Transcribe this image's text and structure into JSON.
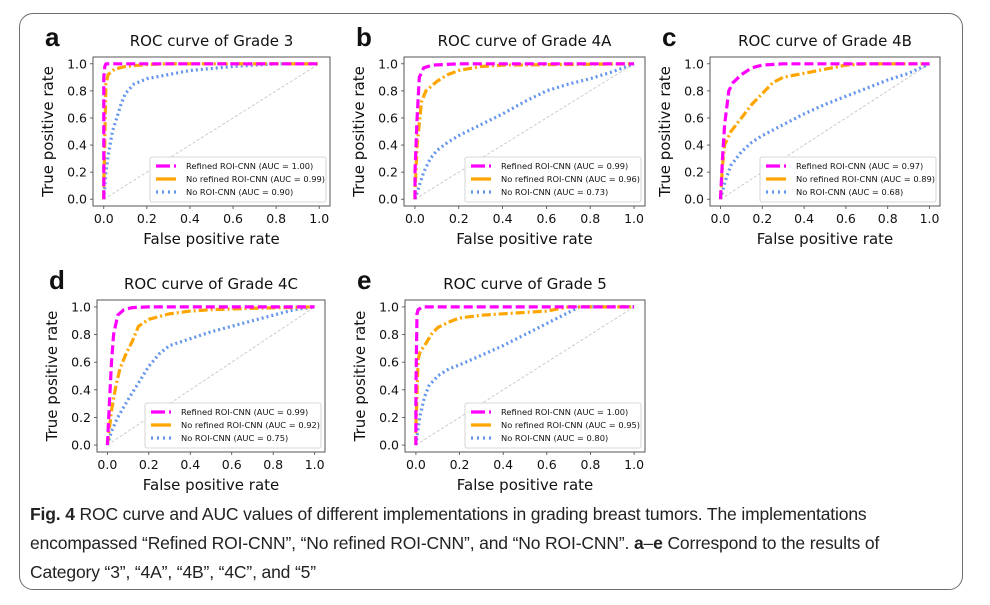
{
  "figure": {
    "caption_label": "Fig. 4",
    "caption_text_1": " ROC curve and AUC values of different implementations in grading breast tumors. The implementations encompassed “Refined ROI-CNN”, “No refined ROI-CNN”, and “No ROI-CNN”. ",
    "caption_bold_2": "a",
    "caption_dash": "–",
    "caption_bold_3": "e",
    "caption_text_2": " Correspond to the results of Category “3”, “4A”, “4B”, “4C”, and “5”"
  },
  "series_styles": {
    "Refined ROI-CNN": {
      "color": "#ff00ff",
      "dash": "dashed"
    },
    "No refined ROI-CNN": {
      "color": "#ffa500",
      "dash": "dashdot"
    },
    "No ROI-CNN": {
      "color": "#6495ed",
      "dash": "dotted"
    },
    "chance": {
      "color": "#c0c0c0",
      "dash": "dashed"
    }
  },
  "chart_data": [
    {
      "panel": "a",
      "type": "line",
      "title": "ROC curve of Grade 3",
      "xlabel": "False positive rate",
      "ylabel": "True positive rate",
      "xlim": [
        0,
        1
      ],
      "ylim": [
        0,
        1
      ],
      "xticks": [
        "0.0",
        "0.2",
        "0.4",
        "0.6",
        "0.8",
        "1.0"
      ],
      "yticks": [
        "0.0",
        "0.2",
        "0.4",
        "0.6",
        "0.8",
        "1.0"
      ],
      "legend_position": "lower-right",
      "grid": false,
      "series": [
        {
          "name": "Refined ROI-CNN",
          "auc": "1.00",
          "legend": "Refined ROI-CNN (AUC = 1.00)",
          "x": [
            0,
            0,
            0.005,
            0.01,
            0.05,
            1.0
          ],
          "y": [
            0,
            0.9,
            0.98,
            1.0,
            1.0,
            1.0
          ]
        },
        {
          "name": "No refined ROI-CNN",
          "auc": "0.99",
          "legend": "No refined ROI-CNN (AUC = 0.99)",
          "x": [
            0,
            0,
            0.01,
            0.02,
            0.05,
            0.1,
            0.2,
            0.3,
            1.0
          ],
          "y": [
            0,
            0.1,
            0.85,
            0.92,
            0.96,
            0.98,
            0.995,
            1.0,
            1.0
          ]
        },
        {
          "name": "No ROI-CNN",
          "auc": "0.90",
          "legend": "No ROI-CNN (AUC = 0.90)",
          "x": [
            0,
            0.01,
            0.02,
            0.04,
            0.06,
            0.08,
            0.1,
            0.14,
            0.2,
            0.3,
            0.4,
            0.6,
            0.8,
            1.0
          ],
          "y": [
            0,
            0.2,
            0.32,
            0.5,
            0.6,
            0.7,
            0.78,
            0.85,
            0.89,
            0.92,
            0.95,
            0.98,
            1.0,
            1.0
          ]
        }
      ]
    },
    {
      "panel": "b",
      "type": "line",
      "title": "ROC curve of Grade 4A",
      "xlabel": "False positive rate",
      "ylabel": "True positive rate",
      "xlim": [
        0,
        1
      ],
      "ylim": [
        0,
        1
      ],
      "xticks": [
        "0.0",
        "0.2",
        "0.4",
        "0.6",
        "0.8",
        "1.0"
      ],
      "yticks": [
        "0.0",
        "0.2",
        "0.4",
        "0.6",
        "0.8",
        "1.0"
      ],
      "legend_position": "lower-right",
      "grid": false,
      "series": [
        {
          "name": "Refined ROI-CNN",
          "auc": "0.99",
          "legend": "Refined ROI-CNN (AUC = 0.99)",
          "x": [
            0,
            0,
            0.01,
            0.02,
            0.04,
            0.08,
            0.2,
            1.0
          ],
          "y": [
            0,
            0.2,
            0.6,
            0.9,
            0.97,
            0.99,
            1.0,
            1.0
          ]
        },
        {
          "name": "No refined ROI-CNN",
          "auc": "0.96",
          "legend": "No refined ROI-CNN (AUC = 0.96)",
          "x": [
            0,
            0,
            0.01,
            0.03,
            0.05,
            0.1,
            0.15,
            0.2,
            0.3,
            0.4,
            1.0
          ],
          "y": [
            0,
            0.05,
            0.4,
            0.72,
            0.8,
            0.87,
            0.92,
            0.95,
            0.98,
            0.99,
            1.0
          ]
        },
        {
          "name": "No ROI-CNN",
          "auc": "0.73",
          "legend": "No ROI-CNN (AUC = 0.73)",
          "x": [
            0,
            0.02,
            0.04,
            0.07,
            0.1,
            0.15,
            0.2,
            0.3,
            0.4,
            0.5,
            0.6,
            0.7,
            0.8,
            0.9,
            1.0
          ],
          "y": [
            0,
            0.1,
            0.2,
            0.3,
            0.36,
            0.42,
            0.47,
            0.55,
            0.63,
            0.72,
            0.8,
            0.85,
            0.89,
            0.94,
            1.0
          ]
        }
      ]
    },
    {
      "panel": "c",
      "type": "line",
      "title": "ROC curve of Grade 4B",
      "xlabel": "False positive rate",
      "ylabel": "True positive rate",
      "xlim": [
        0,
        1
      ],
      "ylim": [
        0,
        1
      ],
      "xticks": [
        "0.0",
        "0.2",
        "0.4",
        "0.6",
        "0.8",
        "1.0"
      ],
      "yticks": [
        "0.0",
        "0.2",
        "0.4",
        "0.6",
        "0.8",
        "1.0"
      ],
      "legend_position": "lower-right",
      "grid": false,
      "series": [
        {
          "name": "Refined ROI-CNN",
          "auc": "0.97",
          "legend": "Refined ROI-CNN (AUC = 0.97)",
          "x": [
            0,
            0.01,
            0.02,
            0.04,
            0.06,
            0.1,
            0.15,
            0.2,
            0.3,
            0.5,
            1.0
          ],
          "y": [
            0,
            0.3,
            0.55,
            0.8,
            0.86,
            0.92,
            0.97,
            0.99,
            1.0,
            1.0,
            1.0
          ]
        },
        {
          "name": "No refined ROI-CNN",
          "auc": "0.89",
          "legend": "No refined ROI-CNN (AUC = 0.89)",
          "x": [
            0,
            0.01,
            0.02,
            0.05,
            0.1,
            0.15,
            0.2,
            0.25,
            0.3,
            0.4,
            0.5,
            0.6,
            0.7,
            1.0
          ],
          "y": [
            0,
            0.25,
            0.4,
            0.5,
            0.6,
            0.7,
            0.78,
            0.86,
            0.9,
            0.93,
            0.96,
            0.99,
            1.0,
            1.0
          ]
        },
        {
          "name": "No ROI-CNN",
          "auc": "0.68",
          "legend": "No ROI-CNN (AUC = 0.68)",
          "x": [
            0,
            0.02,
            0.05,
            0.1,
            0.15,
            0.2,
            0.3,
            0.4,
            0.5,
            0.6,
            0.7,
            0.8,
            0.9,
            1.0
          ],
          "y": [
            0,
            0.12,
            0.25,
            0.35,
            0.42,
            0.47,
            0.55,
            0.63,
            0.7,
            0.76,
            0.82,
            0.88,
            0.93,
            1.0
          ]
        }
      ]
    },
    {
      "panel": "d",
      "type": "line",
      "title": "ROC curve of Grade 4C",
      "xlabel": "False positive rate",
      "ylabel": "True positive rate",
      "xlim": [
        0,
        1
      ],
      "ylim": [
        0,
        1
      ],
      "xticks": [
        "0.0",
        "0.2",
        "0.4",
        "0.6",
        "0.8",
        "1.0"
      ],
      "yticks": [
        "0.0",
        "0.2",
        "0.4",
        "0.6",
        "0.8",
        "1.0"
      ],
      "legend_position": "lower-right",
      "grid": false,
      "series": [
        {
          "name": "Refined ROI-CNN",
          "auc": "0.99",
          "legend": "Refined ROI-CNN (AUC = 0.99)",
          "x": [
            0,
            0.01,
            0.02,
            0.03,
            0.05,
            0.08,
            0.12,
            0.2,
            1.0
          ],
          "y": [
            0,
            0.3,
            0.6,
            0.8,
            0.94,
            0.98,
            0.995,
            1.0,
            1.0
          ]
        },
        {
          "name": "No refined ROI-CNN",
          "auc": "0.92",
          "legend": "No refined ROI-CNN (AUC = 0.92)",
          "x": [
            0,
            0.02,
            0.04,
            0.06,
            0.09,
            0.12,
            0.15,
            0.2,
            0.3,
            0.4,
            0.5,
            0.7,
            1.0
          ],
          "y": [
            0,
            0.25,
            0.42,
            0.55,
            0.66,
            0.75,
            0.86,
            0.91,
            0.95,
            0.97,
            0.98,
            0.99,
            1.0
          ]
        },
        {
          "name": "No ROI-CNN",
          "auc": "0.75",
          "legend": "No ROI-CNN (AUC = 0.75)",
          "x": [
            0,
            0.02,
            0.05,
            0.1,
            0.15,
            0.2,
            0.25,
            0.3,
            0.4,
            0.5,
            0.6,
            0.7,
            0.8,
            0.9,
            1.0
          ],
          "y": [
            0,
            0.1,
            0.2,
            0.33,
            0.45,
            0.57,
            0.66,
            0.72,
            0.77,
            0.82,
            0.86,
            0.9,
            0.94,
            0.98,
            1.0
          ]
        }
      ]
    },
    {
      "panel": "e",
      "type": "line",
      "title": "ROC curve of Grade 5",
      "xlabel": "False positive rate",
      "ylabel": "True positive rate",
      "xlim": [
        0,
        1
      ],
      "ylim": [
        0,
        1
      ],
      "xticks": [
        "0.0",
        "0.2",
        "0.4",
        "0.6",
        "0.8",
        "1.0"
      ],
      "yticks": [
        "0.0",
        "0.2",
        "0.4",
        "0.6",
        "0.8",
        "1.0"
      ],
      "legend_position": "lower-right",
      "grid": false,
      "series": [
        {
          "name": "Refined ROI-CNN",
          "auc": "1.00",
          "legend": "Refined ROI-CNN (AUC = 1.00)",
          "x": [
            0,
            0,
            0.005,
            0.01,
            0.03,
            1.0
          ],
          "y": [
            0,
            0.4,
            0.95,
            0.98,
            1.0,
            1.0
          ]
        },
        {
          "name": "No refined ROI-CNN",
          "auc": "0.95",
          "legend": "No refined ROI-CNN (AUC = 0.95)",
          "x": [
            0,
            0,
            0.01,
            0.02,
            0.04,
            0.07,
            0.1,
            0.15,
            0.2,
            0.3,
            0.4,
            0.5,
            0.6,
            0.7,
            1.0
          ],
          "y": [
            0,
            0.12,
            0.62,
            0.68,
            0.72,
            0.8,
            0.85,
            0.89,
            0.92,
            0.94,
            0.95,
            0.96,
            0.97,
            1.0,
            1.0
          ]
        },
        {
          "name": "No ROI-CNN",
          "auc": "0.80",
          "legend": "No ROI-CNN (AUC = 0.80)",
          "x": [
            0,
            0.01,
            0.02,
            0.04,
            0.06,
            0.1,
            0.15,
            0.2,
            0.3,
            0.4,
            0.5,
            0.6,
            0.7,
            0.75,
            1.0
          ],
          "y": [
            0,
            0.12,
            0.22,
            0.35,
            0.43,
            0.5,
            0.55,
            0.58,
            0.65,
            0.72,
            0.8,
            0.88,
            0.96,
            1.0,
            1.0
          ]
        }
      ]
    }
  ]
}
